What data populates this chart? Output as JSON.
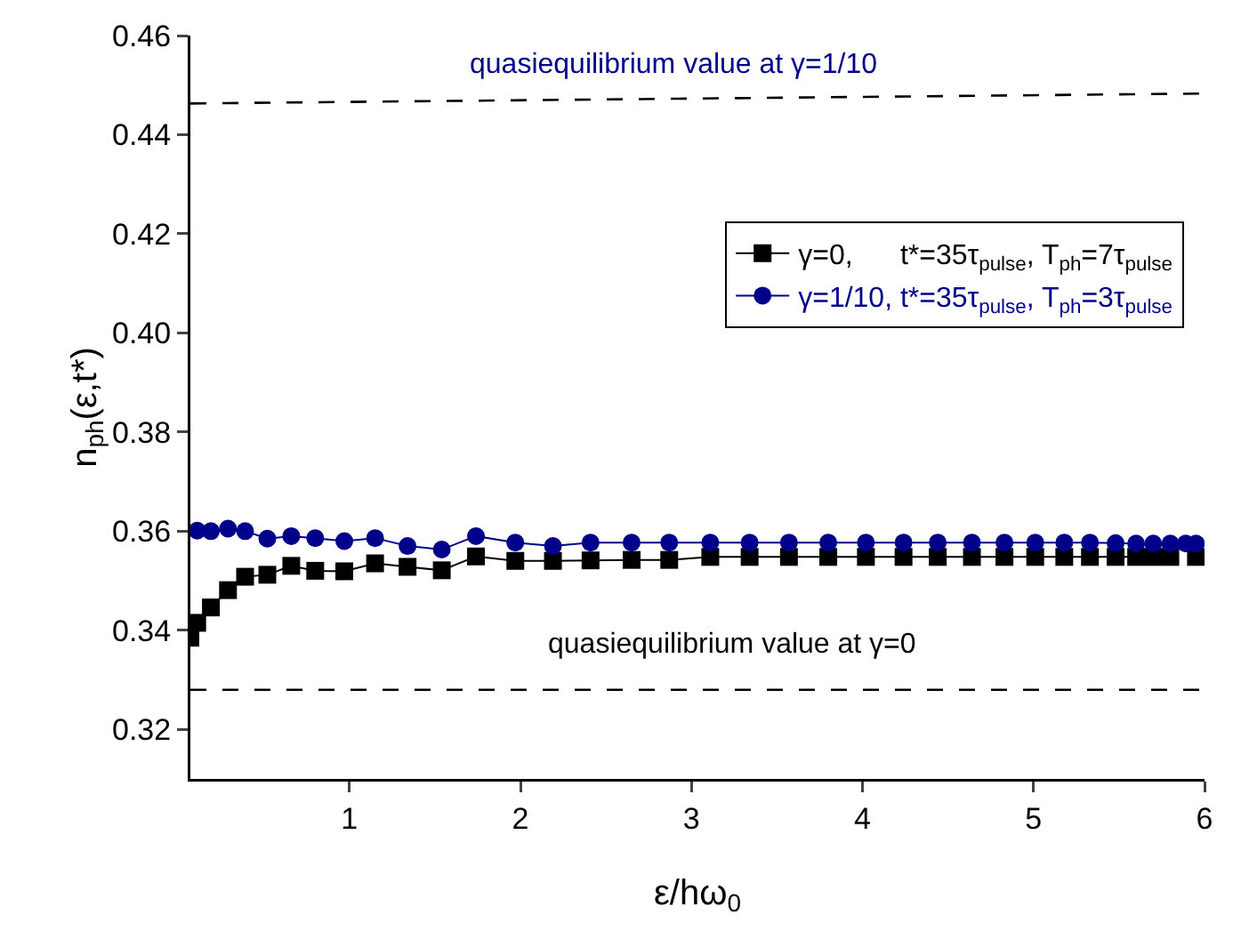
{
  "chart_data": {
    "type": "line",
    "xlabel": "ε/hω$_{0}$",
    "ylabel": "n$_{ph}$(ε,t*)",
    "xlim": [
      0.07,
      6
    ],
    "xticks": [
      1,
      2,
      3,
      4,
      5,
      6
    ],
    "ylim": [
      0.31,
      0.46
    ],
    "yticks": [
      {
        "value": 0.32,
        "label": "0.32"
      },
      {
        "value": 0.34,
        "label": "0.34"
      },
      {
        "value": 0.36,
        "label": "0.36"
      },
      {
        "value": 0.38,
        "label": "0.38"
      },
      {
        "value": 0.4,
        "label": "0.40"
      },
      {
        "value": 0.42,
        "label": "0.42"
      },
      {
        "value": 0.44,
        "label": "0.44"
      },
      {
        "value": 0.46,
        "label": "0.46"
      }
    ],
    "grid": false,
    "legend": "top right",
    "series": [
      {
        "name": "γ=0,      t*=35τ$_{pulse}$, T$_{ph}$=7τ$_{pulse}$",
        "color": "#000000",
        "marker": "square",
        "line_style": "solid",
        "x": [
          0.07,
          0.11,
          0.19,
          0.29,
          0.39,
          0.52,
          0.66,
          0.8,
          0.97,
          1.15,
          1.34,
          1.54,
          1.74,
          1.97,
          2.19,
          2.41,
          2.65,
          2.87,
          3.11,
          3.34,
          3.57,
          3.8,
          4.02,
          4.24,
          4.44,
          4.64,
          4.83,
          5.01,
          5.18,
          5.33,
          5.48,
          5.6,
          5.7,
          5.8,
          5.89,
          5.95
        ],
        "values": [
          0.3385,
          0.3415,
          0.3446,
          0.3481,
          0.3508,
          0.3512,
          0.353,
          0.352,
          0.3519,
          0.3535,
          0.3528,
          0.3521,
          0.3549,
          0.354,
          0.354,
          0.3541,
          0.3542,
          0.3542,
          0.3548,
          0.3548,
          0.3548,
          0.3548,
          0.3548,
          0.3548,
          0.3548,
          0.3548,
          0.3548,
          0.3548,
          0.3548,
          0.3548,
          0.3548,
          0.3548,
          0.3548,
          0.3548,
          null,
          0.3548
        ]
      },
      {
        "name": "γ=1/10, t*=35τ$_{pulse}$, T$_{ph}$=3τ$_{pulse}$",
        "color": "#00008b",
        "marker": "circle",
        "line_style": "solid",
        "x": [
          0.11,
          0.19,
          0.29,
          0.39,
          0.52,
          0.66,
          0.8,
          0.97,
          1.15,
          1.34,
          1.54,
          1.74,
          1.97,
          2.19,
          2.41,
          2.65,
          2.87,
          3.11,
          3.34,
          3.57,
          3.8,
          4.02,
          4.24,
          4.44,
          4.64,
          4.83,
          5.01,
          5.18,
          5.33,
          5.48,
          5.6,
          5.7,
          5.8,
          5.89,
          5.95
        ],
        "values": [
          0.3601,
          0.36,
          0.3605,
          0.36,
          0.3585,
          0.359,
          0.3586,
          0.358,
          0.3586,
          0.357,
          0.3563,
          0.359,
          0.3577,
          0.357,
          0.3577,
          0.3577,
          0.3577,
          0.3577,
          0.3577,
          0.3577,
          0.3577,
          0.3577,
          0.3577,
          0.3577,
          0.3577,
          0.3577,
          0.3577,
          0.3577,
          0.3577,
          0.3576,
          0.3575,
          0.3575,
          0.3575,
          0.3575,
          0.3575
        ]
      },
      {
        "color": "#000000",
        "marker": "none",
        "line_style": "dashed",
        "x": [
          0.07,
          6
        ],
        "values": [
          0.4463,
          0.4483
        ]
      }
    ],
    "ref_lines": [
      {
        "axis": "y",
        "value": 0.328,
        "color": "#000000",
        "line_style": "dashed"
      }
    ],
    "annotations": [
      "quasiequilibrium value at γ=1/10",
      "quasiequilibrium value at γ=0"
    ]
  }
}
